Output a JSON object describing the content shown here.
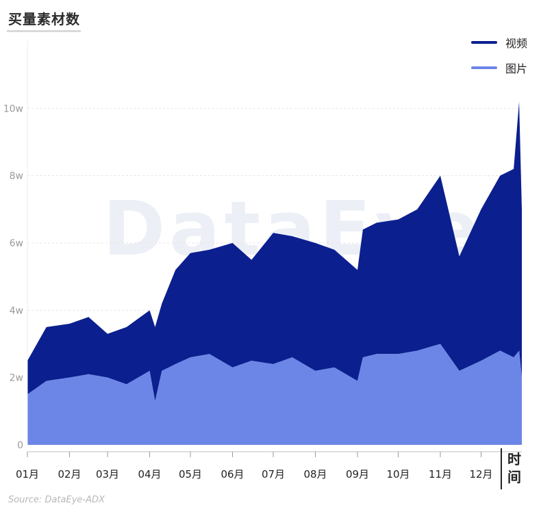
{
  "title": "买量素材数",
  "watermark": "DataEye",
  "source": "Source: DataEye-ADX",
  "x_axis_name": "时间",
  "colors": {
    "video": "#0b1f8f",
    "image": "#6b86e6",
    "grid": "#e6e6e6",
    "axis": "#bfbfbf"
  },
  "chart_data": {
    "type": "area",
    "stacked": true,
    "title": "买量素材数",
    "xlabel": "时间",
    "ylabel": "",
    "ylim": [
      0,
      120000
    ],
    "y_ticks": [
      0,
      20000,
      40000,
      60000,
      80000,
      100000
    ],
    "y_tick_labels": [
      "0",
      "2w",
      "4w",
      "6w",
      "8w",
      "10w"
    ],
    "x_tick_labels": [
      "01月",
      "02月",
      "03月",
      "04月",
      "05月",
      "06月",
      "07月",
      "08月",
      "09月",
      "10月",
      "11月",
      "12月"
    ],
    "legend_position": "top-right",
    "grid": true,
    "x": [
      "01-01",
      "01-15",
      "02-01",
      "02-15",
      "03-01",
      "03-15",
      "04-01",
      "04-05",
      "04-10",
      "04-20",
      "05-01",
      "05-15",
      "06-01",
      "06-15",
      "07-01",
      "07-15",
      "08-01",
      "08-15",
      "09-01",
      "09-05",
      "09-15",
      "10-01",
      "10-15",
      "11-01",
      "11-15",
      "12-01",
      "12-15",
      "12-25",
      "12-29",
      "12-31"
    ],
    "series": [
      {
        "name": "图片",
        "values": [
          15000,
          19000,
          20000,
          21000,
          20000,
          18000,
          22000,
          13000,
          22000,
          24000,
          26000,
          27000,
          23000,
          25000,
          24000,
          26000,
          22000,
          23000,
          19000,
          26000,
          27000,
          27000,
          28000,
          30000,
          22000,
          25000,
          28000,
          26000,
          28000,
          20000
        ]
      },
      {
        "name": "视频",
        "values": [
          25000,
          35000,
          36000,
          38000,
          33000,
          35000,
          40000,
          35000,
          42000,
          52000,
          57000,
          58000,
          60000,
          55000,
          63000,
          62000,
          60000,
          58000,
          52000,
          64000,
          66000,
          67000,
          70000,
          80000,
          56000,
          70000,
          80000,
          82000,
          102000,
          70000
        ]
      }
    ]
  }
}
